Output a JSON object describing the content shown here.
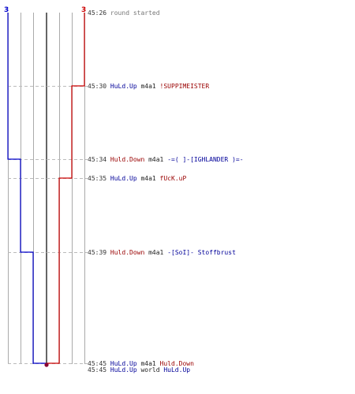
{
  "scores": {
    "left": "3",
    "right": "3"
  },
  "colors": {
    "blue": "#0000cc",
    "red": "#cc0000",
    "grid": "#aaaaaa",
    "dash": "#bbbbbb"
  },
  "events": [
    {
      "time": "45:26",
      "parts": [
        {
          "text": "round started",
          "cls": "gray"
        }
      ]
    },
    {
      "time": "45:30",
      "parts": [
        {
          "text": "HuLd.Up",
          "cls": "blue"
        },
        {
          "text": " m4a1 ",
          "cls": "blk"
        },
        {
          "text": "!SUPPIMEISTER",
          "cls": "red"
        }
      ]
    },
    {
      "time": "45:34",
      "parts": [
        {
          "text": "Huld.Down",
          "cls": "red"
        },
        {
          "text": " m4a1 ",
          "cls": "blk"
        },
        {
          "text": "-=( ]-[IGHLANDER )=-",
          "cls": "blue"
        }
      ]
    },
    {
      "time": "45:35",
      "parts": [
        {
          "text": "HuLd.Up",
          "cls": "blue"
        },
        {
          "text": " m4a1 ",
          "cls": "blk"
        },
        {
          "text": "fUcK.uP",
          "cls": "red"
        }
      ]
    },
    {
      "time": "45:39",
      "parts": [
        {
          "text": "Huld.Down",
          "cls": "red"
        },
        {
          "text": " m4a1 ",
          "cls": "blk"
        },
        {
          "text": "-[SoI]- Stoffbrust",
          "cls": "blue"
        }
      ]
    },
    {
      "time": "45:45",
      "parts": [
        {
          "text": "HuLd.Up",
          "cls": "blue"
        },
        {
          "text": " m4a1 ",
          "cls": "blk"
        },
        {
          "text": "Huld.Down",
          "cls": "red"
        }
      ]
    },
    {
      "time": "45:45",
      "parts": [
        {
          "text": "HuLd.Up",
          "cls": "blue"
        },
        {
          "text": " world ",
          "cls": "blk"
        },
        {
          "text": "HuLd.Up",
          "cls": "blue"
        }
      ]
    }
  ]
}
